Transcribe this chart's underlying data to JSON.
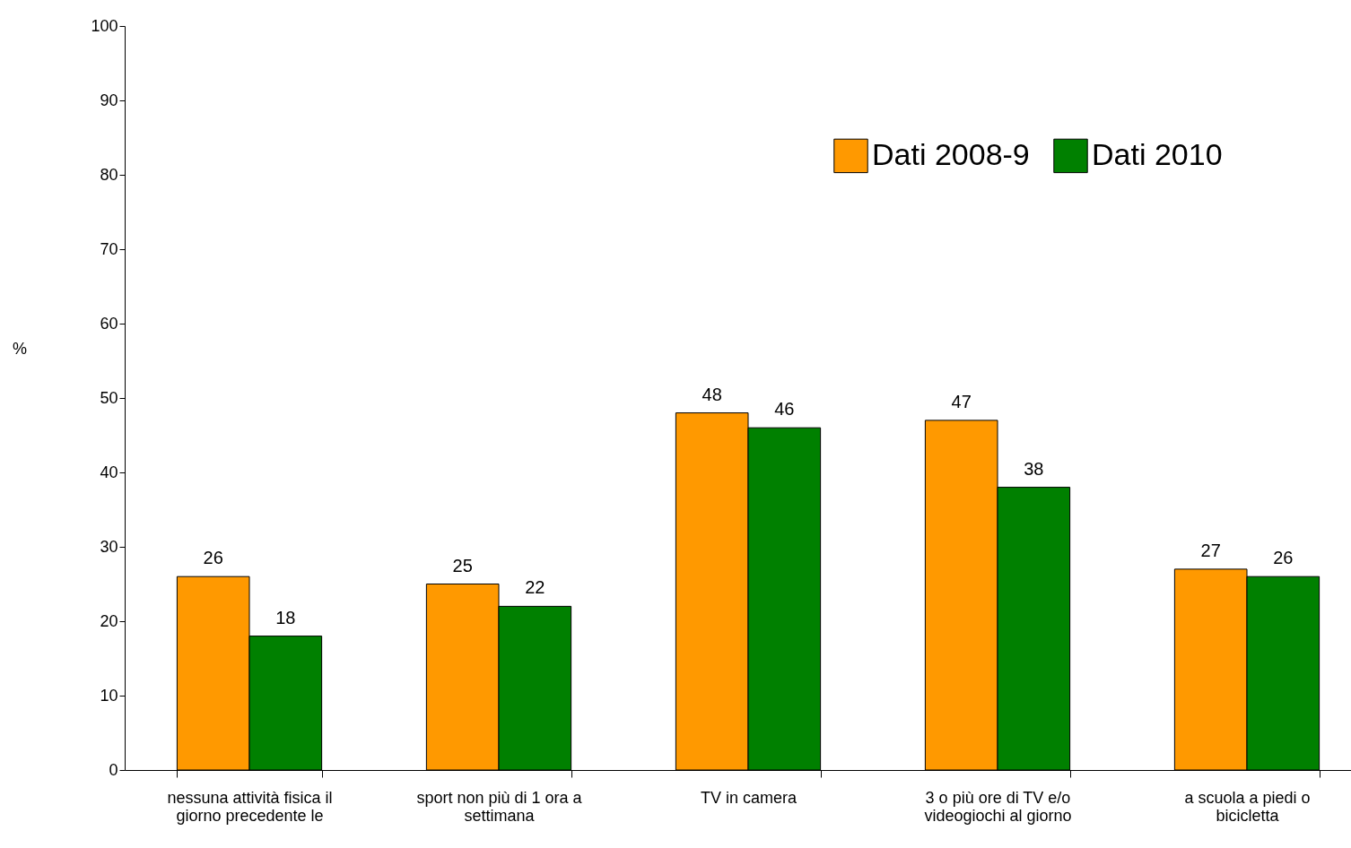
{
  "chart_data": {
    "type": "bar",
    "ylabel": "%",
    "categories": [
      "nessuna attività fisica il giorno precedente le",
      "sport non più di 1 ora a settimana",
      "TV in camera",
      "3 o più ore di TV e/o videogiochi al giorno",
      "a scuola a piedi o bicicletta"
    ],
    "series": [
      {
        "name": "Dati 2008-9",
        "color": "#ff9900",
        "values": [
          26,
          25,
          48,
          47,
          27
        ]
      },
      {
        "name": "Dati 2010",
        "color": "#008000",
        "values": [
          18,
          22,
          46,
          38,
          26
        ]
      }
    ],
    "ylim": [
      0,
      100
    ],
    "yticks": [
      0,
      10,
      20,
      30,
      40,
      50,
      60,
      70,
      80,
      90,
      100
    ],
    "data_labels": true,
    "grid": false,
    "legend": "top right"
  }
}
